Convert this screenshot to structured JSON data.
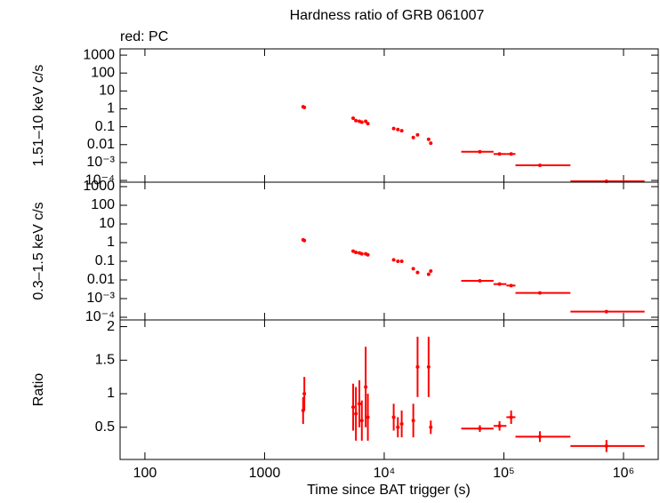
{
  "chart_data": [
    {
      "type": "scatter",
      "title": "Hardness ratio of GRB 061007",
      "annotation": "red: PC",
      "ylabel": "1.51–10 keV c/s",
      "log_x": true,
      "log_y": true,
      "xlim": [
        62,
        1950000
      ],
      "xticks": [
        100,
        1000,
        10000,
        100000,
        1000000
      ],
      "ylim": [
        8e-05,
        2240
      ],
      "yticks": [
        {
          "value": 0.0001,
          "label": "10⁻⁴"
        },
        {
          "value": 0.001,
          "label": "10⁻³"
        },
        0.01,
        0.1,
        1,
        10,
        100,
        1000
      ],
      "x": [
        2100,
        2150,
        5500,
        5800,
        6200,
        6500,
        7000,
        7300,
        12000,
        13000,
        14000,
        17500,
        19000,
        23500,
        24500,
        63000,
        92000,
        115000,
        200000,
        720000
      ],
      "x_low": [
        2040,
        2090,
        5350,
        5650,
        6050,
        6350,
        6850,
        7150,
        11700,
        12700,
        13700,
        17000,
        18500,
        23000,
        24000,
        44000,
        82000,
        105000,
        125000,
        360000
      ],
      "x_high": [
        2160,
        2210,
        5650,
        5950,
        6350,
        6650,
        7150,
        7450,
        12300,
        13300,
        14300,
        18000,
        19500,
        24000,
        25000,
        82000,
        105000,
        125000,
        360000,
        1500000
      ],
      "series": [
        {
          "color": "#ff0000",
          "values": [
            1.3,
            1.2,
            0.3,
            0.22,
            0.2,
            0.18,
            0.2,
            0.15,
            0.08,
            0.07,
            0.06,
            0.025,
            0.035,
            0.02,
            0.012,
            0.004,
            0.003,
            0.003,
            0.0007,
            9e-05
          ]
        }
      ]
    },
    {
      "type": "scatter",
      "ylabel": "0.3–1.5 keV c/s",
      "log_x": true,
      "log_y": true,
      "xlim": [
        62,
        1950000
      ],
      "xticks": [
        100,
        1000,
        10000,
        100000,
        1000000
      ],
      "ylim": [
        7.2e-05,
        1730
      ],
      "yticks": [
        {
          "value": 0.0001,
          "label": "10⁻⁴"
        },
        {
          "value": 0.001,
          "label": "10⁻³"
        },
        0.01,
        0.1,
        1,
        10,
        100,
        1000
      ],
      "x": [
        2100,
        2150,
        5500,
        5800,
        6200,
        6500,
        7000,
        7300,
        12000,
        13000,
        14000,
        17500,
        19000,
        23500,
        24500,
        63000,
        92000,
        115000,
        200000,
        720000
      ],
      "x_low": [
        2040,
        2090,
        5350,
        5650,
        6050,
        6350,
        6850,
        7150,
        11700,
        12700,
        13700,
        17000,
        18500,
        23000,
        24000,
        44000,
        82000,
        105000,
        125000,
        360000
      ],
      "x_high": [
        2160,
        2210,
        5650,
        5950,
        6350,
        6650,
        7150,
        7450,
        12300,
        13300,
        14300,
        18000,
        19500,
        24000,
        25000,
        82000,
        105000,
        125000,
        360000,
        1500000
      ],
      "series": [
        {
          "color": "#ff0000",
          "values": [
            1.4,
            1.3,
            0.35,
            0.3,
            0.28,
            0.25,
            0.25,
            0.22,
            0.12,
            0.1,
            0.1,
            0.04,
            0.025,
            0.02,
            0.03,
            0.009,
            0.006,
            0.005,
            0.002,
            0.0002
          ]
        }
      ]
    },
    {
      "type": "scatter",
      "ylabel": "Ratio",
      "xlabel": "Time since BAT trigger (s)",
      "log_x": true,
      "log_y": false,
      "xlim": [
        62,
        1950000
      ],
      "xticks": [
        100,
        1000,
        {
          "value": 10000,
          "label": "10⁴"
        },
        {
          "value": 100000,
          "label": "10⁵"
        },
        {
          "value": 1000000,
          "label": "10⁶"
        }
      ],
      "ylim": [
        0.02,
        2.1
      ],
      "yticks": [
        0.5,
        1,
        1.5,
        2
      ],
      "x": [
        2100,
        2150,
        5500,
        5800,
        6200,
        6500,
        7000,
        7300,
        12000,
        13000,
        14000,
        17500,
        19000,
        23500,
        24500,
        63000,
        92000,
        115000,
        200000,
        720000
      ],
      "x_low": [
        2040,
        2090,
        5350,
        5650,
        6050,
        6350,
        6850,
        7150,
        11700,
        12700,
        13700,
        17000,
        18500,
        23000,
        24000,
        44000,
        82000,
        105000,
        125000,
        360000
      ],
      "x_high": [
        2160,
        2210,
        5650,
        5950,
        6350,
        6650,
        7150,
        7450,
        12300,
        13300,
        14300,
        18000,
        19500,
        24000,
        25000,
        82000,
        105000,
        125000,
        360000,
        1500000
      ],
      "series": [
        {
          "color": "#ff0000",
          "values": [
            0.75,
            1.0,
            0.8,
            0.7,
            0.85,
            0.6,
            1.1,
            0.65,
            0.65,
            0.5,
            0.55,
            0.6,
            1.4,
            1.4,
            0.5,
            0.48,
            0.52,
            0.65,
            0.36,
            0.22
          ],
          "errors": [
            0.2,
            0.25,
            0.35,
            0.4,
            0.35,
            0.3,
            0.6,
            0.35,
            0.2,
            0.15,
            0.2,
            0.25,
            0.45,
            0.45,
            0.1,
            0.05,
            0.07,
            0.1,
            0.08,
            0.09
          ]
        }
      ]
    }
  ]
}
